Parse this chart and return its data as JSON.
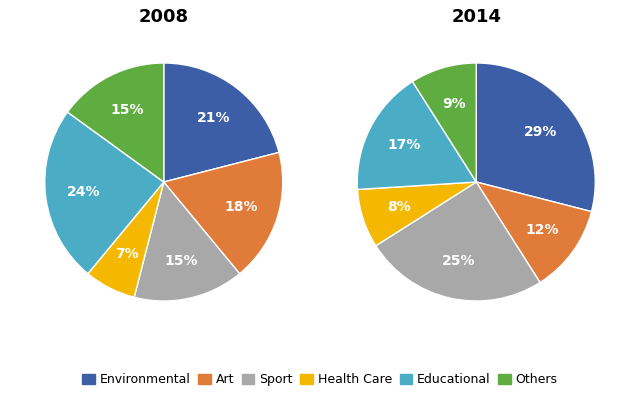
{
  "title_2008": "2008",
  "title_2014": "2014",
  "categories": [
    "Environmental",
    "Art",
    "Sport",
    "Health Care",
    "Educational",
    "Others"
  ],
  "colors": [
    "#3B5EA6",
    "#E07B39",
    "#A8A8A8",
    "#F5B800",
    "#4BACC6",
    "#5FAD41"
  ],
  "values_2008": [
    21,
    18,
    15,
    7,
    24,
    15
  ],
  "values_2014": [
    29,
    12,
    25,
    8,
    17,
    9
  ],
  "startangle_2008": 90,
  "startangle_2014": 90,
  "label_fontsize": 10,
  "title_fontsize": 13,
  "legend_fontsize": 9,
  "pctdistance": 0.68
}
